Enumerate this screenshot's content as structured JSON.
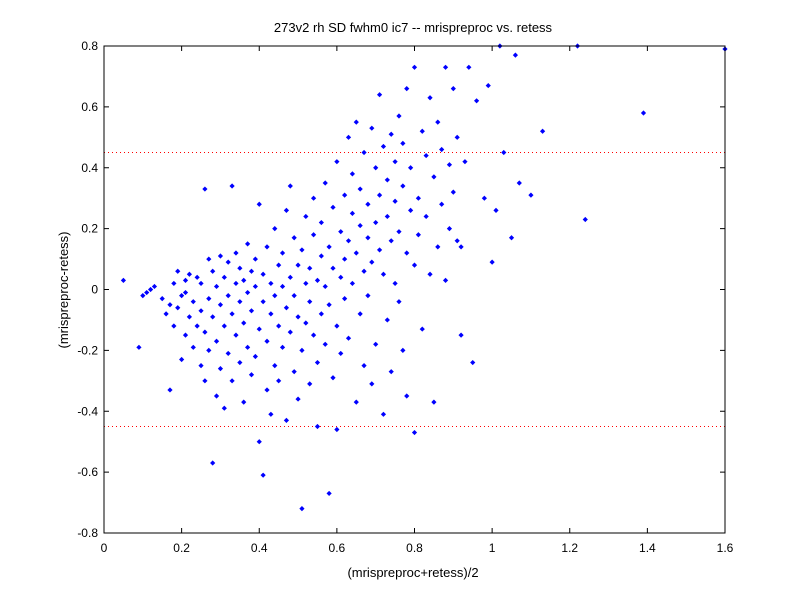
{
  "chart_data": {
    "type": "scatter",
    "title": "273v2 rh SD fwhm0 ic7 -- mrispreproc vs. retess",
    "xlabel": "(mrispreproc+retess)/2",
    "ylabel": "(mrispreproc-retess)",
    "xlim": [
      0,
      1.6
    ],
    "ylim": [
      -0.8,
      0.8
    ],
    "xticks": [
      0,
      0.2,
      0.4,
      0.6,
      0.8,
      1,
      1.2,
      1.4,
      1.6
    ],
    "xtick_labels": [
      "0",
      "0.2",
      "0.4",
      "0.6",
      "0.8",
      "1",
      "1.2",
      "1.4",
      "1.6"
    ],
    "yticks": [
      -0.8,
      -0.6,
      -0.4,
      -0.2,
      0,
      0.2,
      0.4,
      0.6,
      0.8
    ],
    "ytick_labels": [
      "-0.8",
      "-0.6",
      "-0.4",
      "-0.2",
      "0",
      "0.2",
      "0.4",
      "0.6",
      "0.8"
    ],
    "limit_lines": [
      0.45,
      -0.45
    ],
    "point_color": "#0000ff",
    "limit_line_color": "#ff0000",
    "grid": false,
    "points": [
      [
        0.05,
        0.03
      ],
      [
        0.09,
        -0.19
      ],
      [
        0.1,
        -0.02
      ],
      [
        0.11,
        -0.01
      ],
      [
        0.12,
        0.0
      ],
      [
        0.13,
        0.01
      ],
      [
        0.15,
        -0.03
      ],
      [
        0.16,
        -0.08
      ],
      [
        0.17,
        -0.33
      ],
      [
        0.17,
        -0.05
      ],
      [
        0.18,
        -0.12
      ],
      [
        0.18,
        0.02
      ],
      [
        0.19,
        -0.06
      ],
      [
        0.19,
        0.06
      ],
      [
        0.2,
        -0.23
      ],
      [
        0.2,
        -0.02
      ],
      [
        0.21,
        -0.15
      ],
      [
        0.21,
        -0.01
      ],
      [
        0.21,
        0.03
      ],
      [
        0.22,
        -0.09
      ],
      [
        0.22,
        0.05
      ],
      [
        0.23,
        -0.19
      ],
      [
        0.23,
        -0.04
      ],
      [
        0.24,
        0.04
      ],
      [
        0.24,
        -0.12
      ],
      [
        0.25,
        -0.25
      ],
      [
        0.25,
        -0.07
      ],
      [
        0.25,
        0.02
      ],
      [
        0.26,
        -0.3
      ],
      [
        0.26,
        -0.14
      ],
      [
        0.26,
        0.33
      ],
      [
        0.27,
        0.1
      ],
      [
        0.27,
        -0.03
      ],
      [
        0.27,
        -0.2
      ],
      [
        0.28,
        -0.57
      ],
      [
        0.28,
        -0.09
      ],
      [
        0.28,
        0.06
      ],
      [
        0.29,
        -0.35
      ],
      [
        0.29,
        -0.17
      ],
      [
        0.29,
        0.01
      ],
      [
        0.3,
        0.11
      ],
      [
        0.3,
        -0.05
      ],
      [
        0.3,
        -0.26
      ],
      [
        0.31,
        -0.12
      ],
      [
        0.31,
        0.04
      ],
      [
        0.31,
        -0.39
      ],
      [
        0.32,
        -0.21
      ],
      [
        0.32,
        -0.02
      ],
      [
        0.32,
        0.09
      ],
      [
        0.33,
        0.34
      ],
      [
        0.33,
        -0.08
      ],
      [
        0.33,
        -0.3
      ],
      [
        0.34,
        0.02
      ],
      [
        0.34,
        -0.15
      ],
      [
        0.34,
        0.12
      ],
      [
        0.35,
        -0.24
      ],
      [
        0.35,
        -0.04
      ],
      [
        0.35,
        0.07
      ],
      [
        0.36,
        -0.37
      ],
      [
        0.36,
        -0.11
      ],
      [
        0.36,
        0.03
      ],
      [
        0.37,
        0.15
      ],
      [
        0.37,
        -0.19
      ],
      [
        0.37,
        -0.01
      ],
      [
        0.38,
        -0.28
      ],
      [
        0.38,
        0.06
      ],
      [
        0.38,
        -0.07
      ],
      [
        0.39,
        0.01
      ],
      [
        0.39,
        -0.22
      ],
      [
        0.39,
        0.1
      ],
      [
        0.4,
        -0.5
      ],
      [
        0.4,
        -0.13
      ],
      [
        0.4,
        0.28
      ],
      [
        0.41,
        -0.61
      ],
      [
        0.41,
        -0.04
      ],
      [
        0.41,
        0.05
      ],
      [
        0.42,
        -0.33
      ],
      [
        0.42,
        -0.17
      ],
      [
        0.42,
        0.14
      ],
      [
        0.43,
        -0.08
      ],
      [
        0.43,
        0.02
      ],
      [
        0.43,
        -0.41
      ],
      [
        0.44,
        -0.25
      ],
      [
        0.44,
        0.2
      ],
      [
        0.44,
        -0.02
      ],
      [
        0.45,
        -0.12
      ],
      [
        0.45,
        0.08
      ],
      [
        0.45,
        -0.3
      ],
      [
        0.46,
        0.01
      ],
      [
        0.46,
        -0.19
      ],
      [
        0.46,
        0.12
      ],
      [
        0.47,
        -0.43
      ],
      [
        0.47,
        -0.06
      ],
      [
        0.47,
        0.26
      ],
      [
        0.48,
        0.04
      ],
      [
        0.48,
        -0.14
      ],
      [
        0.48,
        0.34
      ],
      [
        0.49,
        -0.27
      ],
      [
        0.49,
        -0.02
      ],
      [
        0.49,
        0.17
      ],
      [
        0.5,
        -0.09
      ],
      [
        0.5,
        0.08
      ],
      [
        0.5,
        -0.36
      ],
      [
        0.51,
        -0.72
      ],
      [
        0.51,
        -0.2
      ],
      [
        0.51,
        0.13
      ],
      [
        0.52,
        0.02
      ],
      [
        0.52,
        -0.11
      ],
      [
        0.52,
        0.24
      ],
      [
        0.53,
        -0.31
      ],
      [
        0.53,
        0.07
      ],
      [
        0.53,
        -0.04
      ],
      [
        0.54,
        0.18
      ],
      [
        0.54,
        -0.15
      ],
      [
        0.54,
        0.3
      ],
      [
        0.55,
        -0.45
      ],
      [
        0.55,
        0.03
      ],
      [
        0.55,
        -0.24
      ],
      [
        0.56,
        0.11
      ],
      [
        0.56,
        -0.08
      ],
      [
        0.56,
        0.22
      ],
      [
        0.57,
        0.01
      ],
      [
        0.57,
        -0.18
      ],
      [
        0.57,
        0.35
      ],
      [
        0.58,
        -0.67
      ],
      [
        0.58,
        0.14
      ],
      [
        0.58,
        -0.05
      ],
      [
        0.59,
        0.27
      ],
      [
        0.59,
        -0.29
      ],
      [
        0.59,
        0.07
      ],
      [
        0.6,
        -0.46
      ],
      [
        0.6,
        0.42
      ],
      [
        0.6,
        -0.12
      ],
      [
        0.61,
        0.19
      ],
      [
        0.61,
        0.04
      ],
      [
        0.61,
        -0.21
      ],
      [
        0.62,
        0.31
      ],
      [
        0.62,
        0.1
      ],
      [
        0.62,
        -0.03
      ],
      [
        0.63,
        0.5
      ],
      [
        0.63,
        0.16
      ],
      [
        0.63,
        -0.16
      ],
      [
        0.64,
        0.25
      ],
      [
        0.64,
        0.02
      ],
      [
        0.64,
        0.38
      ],
      [
        0.65,
        -0.37
      ],
      [
        0.65,
        0.12
      ],
      [
        0.65,
        0.55
      ],
      [
        0.66,
        -0.08
      ],
      [
        0.66,
        0.21
      ],
      [
        0.66,
        0.33
      ],
      [
        0.67,
        0.06
      ],
      [
        0.67,
        -0.25
      ],
      [
        0.67,
        0.45
      ],
      [
        0.68,
        0.17
      ],
      [
        0.68,
        -0.02
      ],
      [
        0.68,
        0.28
      ],
      [
        0.69,
        0.53
      ],
      [
        0.69,
        -0.31
      ],
      [
        0.69,
        0.09
      ],
      [
        0.7,
        0.4
      ],
      [
        0.7,
        0.22
      ],
      [
        0.7,
        -0.18
      ],
      [
        0.71,
        0.64
      ],
      [
        0.71,
        0.13
      ],
      [
        0.71,
        0.31
      ],
      [
        0.72,
        -0.41
      ],
      [
        0.72,
        0.05
      ],
      [
        0.72,
        0.47
      ],
      [
        0.73,
        0.24
      ],
      [
        0.73,
        -0.1
      ],
      [
        0.73,
        0.36
      ],
      [
        0.74,
        0.16
      ],
      [
        0.74,
        -0.27
      ],
      [
        0.74,
        0.51
      ],
      [
        0.75,
        0.29
      ],
      [
        0.75,
        0.02
      ],
      [
        0.75,
        0.42
      ],
      [
        0.76,
        0.57
      ],
      [
        0.76,
        -0.04
      ],
      [
        0.76,
        0.19
      ],
      [
        0.77,
        0.34
      ],
      [
        0.77,
        -0.2
      ],
      [
        0.77,
        0.48
      ],
      [
        0.78,
        0.12
      ],
      [
        0.78,
        0.66
      ],
      [
        0.78,
        -0.35
      ],
      [
        0.79,
        0.26
      ],
      [
        0.79,
        0.4
      ],
      [
        0.8,
        -0.47
      ],
      [
        0.8,
        0.08
      ],
      [
        0.8,
        0.73
      ],
      [
        0.81,
        0.3
      ],
      [
        0.81,
        0.18
      ],
      [
        0.82,
        0.52
      ],
      [
        0.82,
        -0.13
      ],
      [
        0.83,
        0.44
      ],
      [
        0.83,
        0.24
      ],
      [
        0.84,
        0.63
      ],
      [
        0.84,
        0.05
      ],
      [
        0.85,
        0.37
      ],
      [
        0.85,
        -0.37
      ],
      [
        0.86,
        0.55
      ],
      [
        0.86,
        0.14
      ],
      [
        0.87,
        0.46
      ],
      [
        0.87,
        0.28
      ],
      [
        0.88,
        0.73
      ],
      [
        0.88,
        0.03
      ],
      [
        0.89,
        0.41
      ],
      [
        0.89,
        0.2
      ],
      [
        0.9,
        0.66
      ],
      [
        0.9,
        0.32
      ],
      [
        0.91,
        0.16
      ],
      [
        0.91,
        0.5
      ],
      [
        0.92,
        -0.15
      ],
      [
        0.92,
        0.14
      ],
      [
        0.93,
        0.42
      ],
      [
        0.94,
        0.73
      ],
      [
        0.95,
        -0.24
      ],
      [
        0.96,
        0.62
      ],
      [
        0.98,
        0.3
      ],
      [
        0.99,
        0.67
      ],
      [
        1.0,
        0.09
      ],
      [
        1.01,
        0.26
      ],
      [
        1.02,
        0.8
      ],
      [
        1.03,
        0.45
      ],
      [
        1.05,
        0.17
      ],
      [
        1.06,
        0.77
      ],
      [
        1.07,
        0.35
      ],
      [
        1.1,
        0.31
      ],
      [
        1.13,
        0.52
      ],
      [
        1.22,
        0.8
      ],
      [
        1.24,
        0.23
      ],
      [
        1.39,
        0.58
      ],
      [
        1.6,
        0.79
      ]
    ]
  }
}
